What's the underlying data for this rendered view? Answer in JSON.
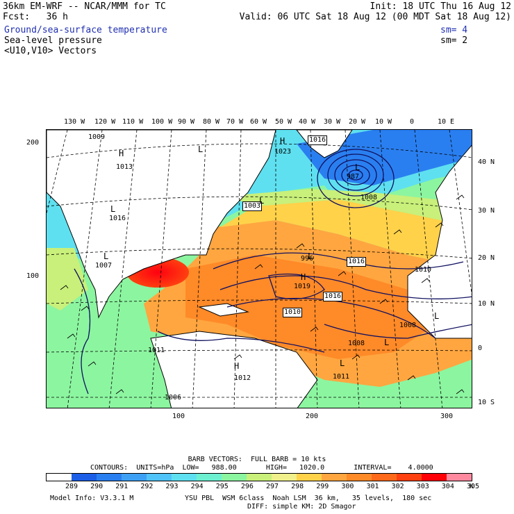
{
  "header": {
    "line1_left": "36km EM-WRF -- NCAR/MMM for TC",
    "line1_right": "Init: 18 UTC Thu 16 Aug 12",
    "line2_left": "Fcst:   36 h",
    "line2_right": "Valid: 06 UTC Sat 18 Aug 12 (00 MDT Sat 18 Aug 12)",
    "field1": "Ground/sea-surface temperature",
    "field1_sm": "sm= 4",
    "field2": "Sea-level pressure",
    "field2_sm": "sm= 2",
    "field3": "<U10,V10> Vectors"
  },
  "map": {
    "top_lon_labels": [
      "130 W",
      "120 W",
      "110 W",
      "100 W",
      "90 W",
      "80 W",
      "70 W",
      "60 W",
      "50 W",
      "40 W",
      "30 W",
      "20 W",
      "10 W",
      "0",
      "10 E"
    ],
    "right_lat_labels": [
      "40 N",
      "30 N",
      "20 N",
      "10 N",
      "0",
      "10 S"
    ],
    "left_grid_labels": [
      "200",
      "100"
    ],
    "bottom_grid_labels": [
      "100",
      "200",
      "300"
    ],
    "pressure_labels": [
      "1009",
      "1016",
      "1023",
      "1013",
      "987",
      "1008",
      "1003",
      "1016",
      "996",
      "1016",
      "1019",
      "1016",
      "1010",
      "1008",
      "1007",
      "1011",
      "1011",
      "1012",
      "1006",
      "1008",
      "1010"
    ],
    "high_low_marks": [
      "H",
      "L",
      "H",
      "L",
      "L",
      "L",
      "H",
      "L",
      "L",
      "L",
      "H",
      "L",
      "L"
    ]
  },
  "legend": {
    "barb_text": "BARB VECTORS:  FULL BARB = 10 kts",
    "contours_text": "CONTOURS:  UNITS=hPa  LOW=   988.00       HIGH=   1020.0       INTERVAL=    4.0000",
    "colorbar_labels": [
      "289",
      "290",
      "291",
      "292",
      "293",
      "294",
      "295",
      "296",
      "297",
      "298",
      "299",
      "300",
      "301",
      "302",
      "303",
      "304",
      "305"
    ],
    "unit": "K",
    "colors": [
      "#ffffff",
      "#1c5ee6",
      "#2a7ff0",
      "#3ea0f5",
      "#50c3f8",
      "#5fe0f0",
      "#6cf0d0",
      "#8cf5a0",
      "#c8f07a",
      "#f0f08c",
      "#ffd24a",
      "#ffa640",
      "#ff8a28",
      "#ff6a1a",
      "#ff4010",
      "#ff0008",
      "#ff8aa0"
    ]
  },
  "footer": {
    "model_info": "Model Info: V3.3.1 M",
    "physics1": "YSU PBL  WSM 6class  Noah LSM  36 km,   35 levels,  180 sec",
    "physics2": "DIFF: simple KM: 2D Smagor"
  }
}
